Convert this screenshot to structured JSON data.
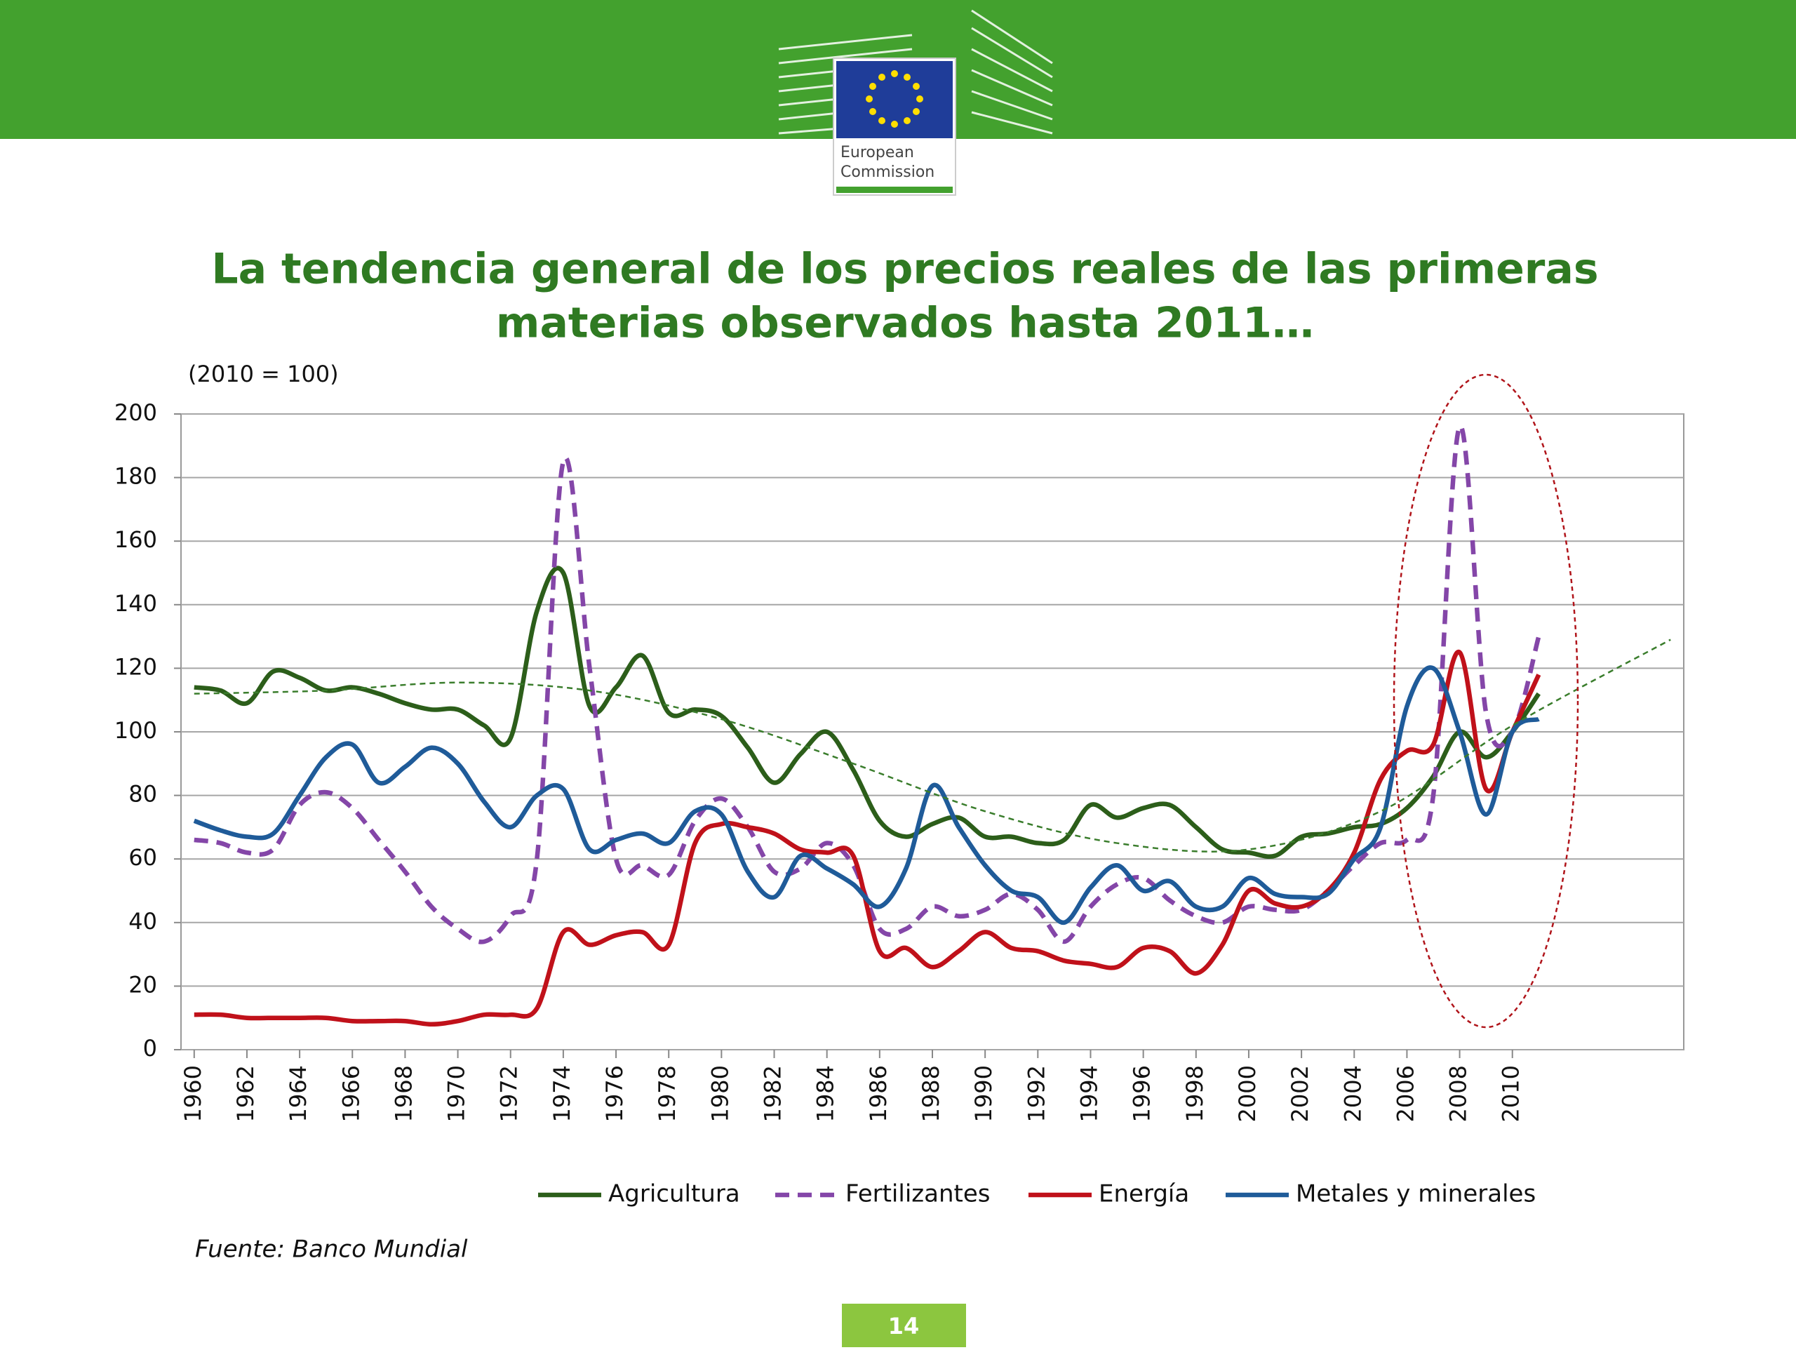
{
  "slide": {
    "logo_lines": [
      "European",
      "Commission"
    ],
    "title_lines": [
      "La tendencia general de los precios reales de las primeras",
      "materias observados hasta 2011…"
    ],
    "page_number": "14"
  },
  "chart_data": {
    "type": "line",
    "subtitle": "(2010 = 100)",
    "source": "Fuente: Banco Mundial",
    "x": [
      1960,
      1961,
      1962,
      1963,
      1964,
      1965,
      1966,
      1967,
      1968,
      1969,
      1970,
      1971,
      1972,
      1973,
      1974,
      1975,
      1976,
      1977,
      1978,
      1979,
      1980,
      1981,
      1982,
      1983,
      1984,
      1985,
      1986,
      1987,
      1988,
      1989,
      1990,
      1991,
      1992,
      1993,
      1994,
      1995,
      1996,
      1997,
      1998,
      1999,
      2000,
      2001,
      2002,
      2003,
      2004,
      2005,
      2006,
      2007,
      2008,
      2009,
      2010,
      2011
    ],
    "series": [
      {
        "name": "Agricultura",
        "color": "#2c5e1a",
        "dashed": false,
        "values": [
          114,
          113,
          109,
          119,
          117,
          113,
          114,
          112,
          109,
          107,
          107,
          102,
          98,
          138,
          150,
          108,
          114,
          124,
          106,
          107,
          105,
          95,
          84,
          93,
          100,
          88,
          72,
          67,
          71,
          73,
          67,
          67,
          65,
          66,
          77,
          73,
          76,
          77,
          70,
          63,
          62,
          61,
          67,
          68,
          70,
          71,
          76,
          86,
          100,
          92,
          100,
          112
        ]
      },
      {
        "name": "Fertilizantes",
        "color": "#8446a8",
        "dashed": true,
        "values": [
          66,
          65,
          62,
          63,
          77,
          81,
          76,
          66,
          56,
          45,
          38,
          34,
          42,
          60,
          185,
          120,
          60,
          58,
          55,
          72,
          79,
          70,
          56,
          57,
          65,
          58,
          38,
          38,
          45,
          42,
          44,
          49,
          44,
          34,
          45,
          52,
          54,
          47,
          42,
          40,
          45,
          44,
          44,
          50,
          58,
          65,
          66,
          80,
          196,
          106,
          100,
          130
        ]
      },
      {
        "name": "Energía",
        "color": "#c0111a",
        "dashed": false,
        "values": [
          11,
          11,
          10,
          10,
          10,
          10,
          9,
          9,
          9,
          8,
          9,
          11,
          11,
          13,
          37,
          33,
          36,
          37,
          33,
          65,
          71,
          70,
          68,
          63,
          62,
          61,
          31,
          32,
          26,
          31,
          37,
          32,
          31,
          28,
          27,
          26,
          32,
          31,
          24,
          33,
          50,
          46,
          45,
          50,
          62,
          85,
          94,
          96,
          125,
          82,
          100,
          118
        ]
      },
      {
        "name": "Metales y minerales",
        "color": "#1f5b99",
        "dashed": false,
        "values": [
          72,
          69,
          67,
          68,
          80,
          92,
          96,
          84,
          89,
          95,
          90,
          78,
          70,
          80,
          82,
          63,
          66,
          68,
          65,
          75,
          74,
          56,
          48,
          61,
          57,
          52,
          45,
          57,
          83,
          70,
          58,
          50,
          48,
          40,
          51,
          58,
          50,
          53,
          45,
          45,
          54,
          49,
          48,
          49,
          60,
          70,
          108,
          120,
          100,
          74,
          100,
          104
        ]
      }
    ],
    "trend": {
      "color": "#3a7d2c",
      "x": [
        1960,
        1965,
        1970,
        1975,
        1980,
        1985,
        1990,
        1995,
        2000,
        2005,
        2010,
        2016
      ],
      "values": [
        112,
        113,
        115.5,
        113,
        104,
        90,
        75,
        65,
        63,
        75,
        102,
        129
      ]
    },
    "xlim": [
      1959.5,
      2016.5
    ],
    "xticks": [
      1960,
      1962,
      1964,
      1966,
      1968,
      1970,
      1972,
      1974,
      1976,
      1978,
      1980,
      1982,
      1984,
      1986,
      1988,
      1990,
      1992,
      1994,
      1996,
      1998,
      2000,
      2002,
      2004,
      2006,
      2008,
      2010
    ],
    "ylim": [
      0,
      200
    ],
    "yticks": [
      0,
      20,
      40,
      60,
      80,
      100,
      120,
      140,
      160,
      180,
      200
    ],
    "grid": true
  }
}
